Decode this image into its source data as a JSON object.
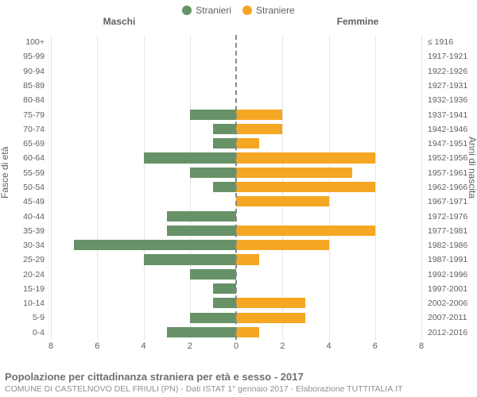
{
  "chart": {
    "type": "population-pyramid",
    "legend": [
      {
        "label": "Stranieri",
        "color": "#679267"
      },
      {
        "label": "Straniere",
        "color": "#f5a623"
      }
    ],
    "column_headers": {
      "left": "Maschi",
      "right": "Femmine"
    },
    "y_axis_left_title": "Fasce di età",
    "y_axis_right_title": "Anni di nascita",
    "x_axis": {
      "max": 8,
      "ticks_left": [
        8,
        6,
        4,
        2,
        0
      ],
      "ticks_right": [
        0,
        2,
        4,
        6,
        8
      ]
    },
    "grid_color": "#e6e6e6",
    "center_line_color": "#888888",
    "background_color": "#ffffff",
    "tick_font_size": 11,
    "label_font_size": 10.5,
    "rows": [
      {
        "age": "100+",
        "birth": "≤ 1916",
        "m": 0,
        "f": 0
      },
      {
        "age": "95-99",
        "birth": "1917-1921",
        "m": 0,
        "f": 0
      },
      {
        "age": "90-94",
        "birth": "1922-1926",
        "m": 0,
        "f": 0
      },
      {
        "age": "85-89",
        "birth": "1927-1931",
        "m": 0,
        "f": 0
      },
      {
        "age": "80-84",
        "birth": "1932-1936",
        "m": 0,
        "f": 0
      },
      {
        "age": "75-79",
        "birth": "1937-1941",
        "m": 2.0,
        "f": 2.0
      },
      {
        "age": "70-74",
        "birth": "1942-1946",
        "m": 1.0,
        "f": 2.0
      },
      {
        "age": "65-69",
        "birth": "1947-1951",
        "m": 1.0,
        "f": 1.0
      },
      {
        "age": "60-64",
        "birth": "1952-1956",
        "m": 4.0,
        "f": 6.0
      },
      {
        "age": "55-59",
        "birth": "1957-1961",
        "m": 2.0,
        "f": 5.0
      },
      {
        "age": "50-54",
        "birth": "1962-1966",
        "m": 1.0,
        "f": 6.0
      },
      {
        "age": "45-49",
        "birth": "1967-1971",
        "m": 0,
        "f": 4.0
      },
      {
        "age": "40-44",
        "birth": "1972-1976",
        "m": 3.0,
        "f": 0
      },
      {
        "age": "35-39",
        "birth": "1977-1981",
        "m": 3.0,
        "f": 6.0
      },
      {
        "age": "30-34",
        "birth": "1982-1986",
        "m": 7.0,
        "f": 4.0
      },
      {
        "age": "25-29",
        "birth": "1987-1991",
        "m": 4.0,
        "f": 1.0
      },
      {
        "age": "20-24",
        "birth": "1992-1996",
        "m": 2.0,
        "f": 0
      },
      {
        "age": "15-19",
        "birth": "1997-2001",
        "m": 1.0,
        "f": 0
      },
      {
        "age": "10-14",
        "birth": "2002-2006",
        "m": 1.0,
        "f": 3.0
      },
      {
        "age": "5-9",
        "birth": "2007-2011",
        "m": 2.0,
        "f": 3.0
      },
      {
        "age": "0-4",
        "birth": "2012-2016",
        "m": 3.0,
        "f": 1.0
      }
    ],
    "title": "Popolazione per cittadinanza straniera per età e sesso - 2017",
    "subtitle": "COMUNE DI CASTELNOVO DEL FRIULI (PN) - Dati ISTAT 1° gennaio 2017 - Elaborazione TUTTITALIA.IT"
  }
}
